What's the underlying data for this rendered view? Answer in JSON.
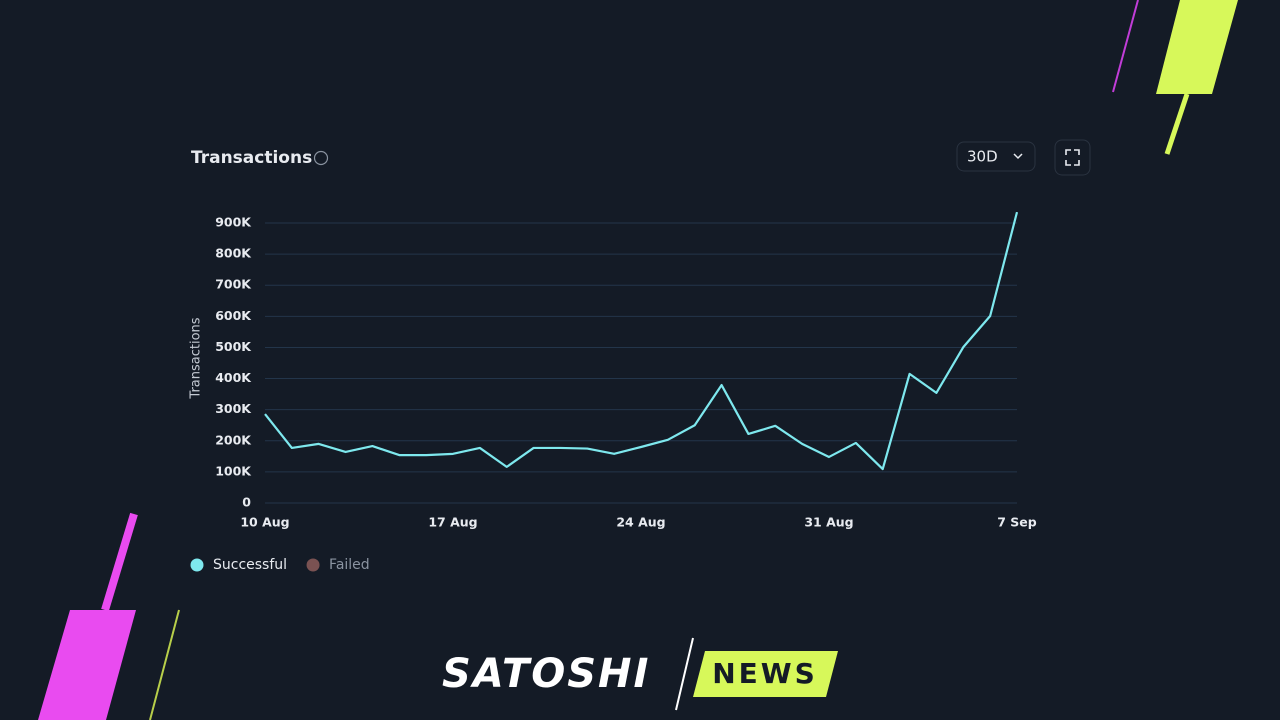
{
  "chart_data": {
    "type": "line",
    "title": "Transactions",
    "range_button": "30D",
    "ylabel": "Transactions",
    "categories": [
      "10 Aug",
      null,
      null,
      null,
      null,
      null,
      null,
      "17 Aug",
      null,
      null,
      null,
      null,
      null,
      null,
      "24 Aug",
      null,
      null,
      null,
      null,
      null,
      null,
      "31 Aug",
      null,
      null,
      null,
      null,
      null,
      null,
      "7 Sep"
    ],
    "series": [
      {
        "name": "Successful",
        "color": "#7ee8ee",
        "values": [
          286000,
          177000,
          190000,
          164000,
          183000,
          154000,
          154000,
          158000,
          177000,
          116000,
          177000,
          177000,
          175000,
          158000,
          180000,
          203000,
          250000,
          379000,
          222000,
          248000,
          190000,
          148000,
          193000,
          109000,
          415000,
          354000,
          501000,
          601000,
          935000
        ]
      }
    ],
    "legend": [
      {
        "name": "Successful",
        "color": "#7ee8ee"
      },
      {
        "name": "Failed",
        "color": "#7a5252"
      }
    ],
    "ylim": [
      0,
      900000
    ],
    "yticks": [
      0,
      {
        "value": 100000,
        "label": "100K"
      },
      {
        "value": 200000,
        "label": "200K"
      },
      {
        "value": 300000,
        "label": "300K"
      },
      {
        "value": 400000,
        "label": "400K"
      },
      {
        "value": 500000,
        "label": "500K"
      },
      {
        "value": 600000,
        "label": "600K"
      },
      {
        "value": 700000,
        "label": "700K"
      },
      {
        "value": 800000,
        "label": "800K"
      },
      {
        "value": 900000,
        "label": "900K"
      }
    ],
    "grid": true
  },
  "brand": {
    "name": "SATOSHI",
    "tag": "NEWS"
  }
}
